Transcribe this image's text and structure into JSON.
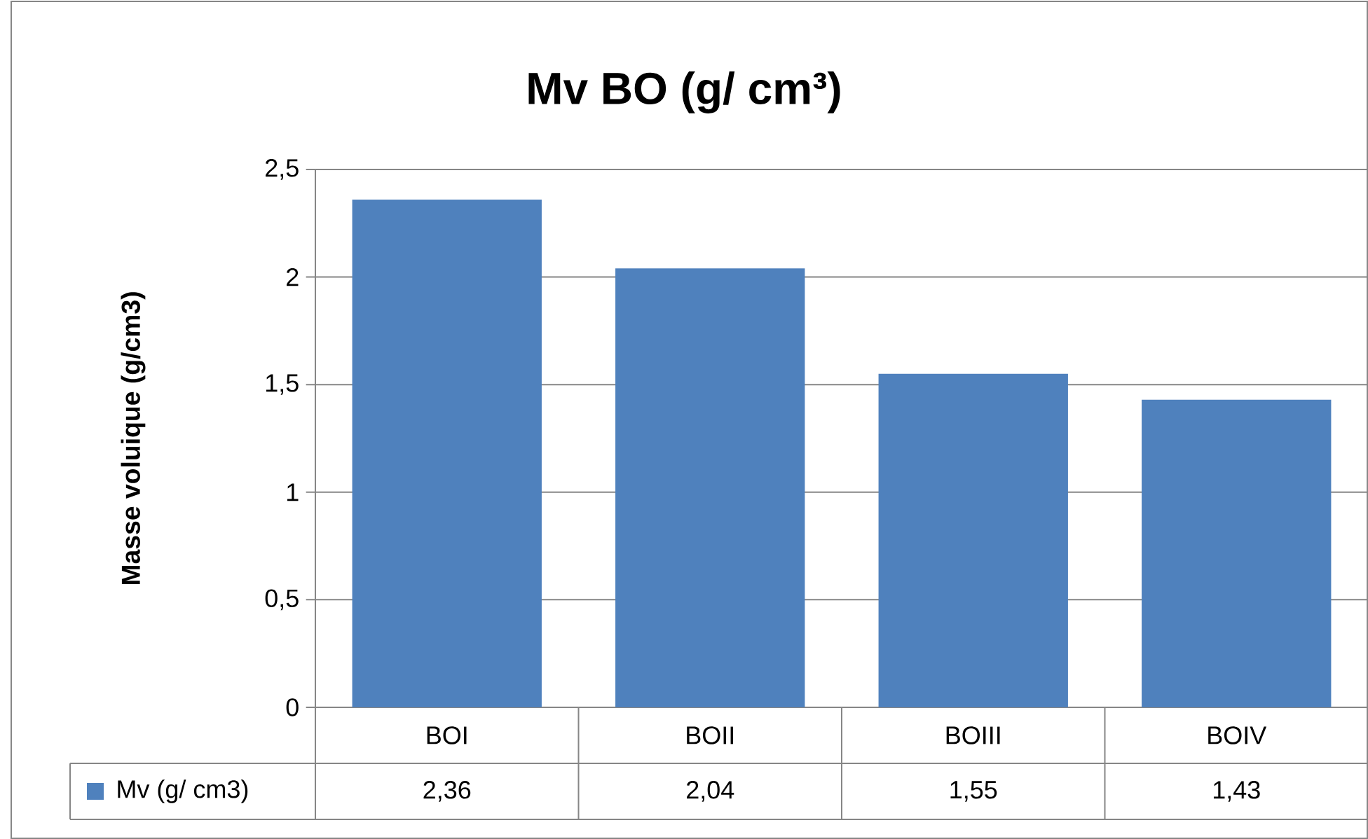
{
  "chart_data": {
    "type": "bar",
    "title": "Mv BO (g/ cm³)",
    "ylabel": "Masse voluique (g/cm3)",
    "categories": [
      "BOI",
      "BOII",
      "BOIII",
      "BOIV"
    ],
    "series": [
      {
        "name": "Mv (g/ cm3)",
        "color": "#4f81bd",
        "values": [
          2.36,
          2.04,
          1.55,
          1.43
        ],
        "value_labels": [
          "2,36",
          "2,04",
          "1,55",
          "1,43"
        ]
      }
    ],
    "ylim": [
      0,
      2.5
    ],
    "yticks": [
      {
        "value": 0,
        "label": "0"
      },
      {
        "value": 0.5,
        "label": "0,5"
      },
      {
        "value": 1,
        "label": "1"
      },
      {
        "value": 1.5,
        "label": "1,5"
      },
      {
        "value": 2,
        "label": "2"
      },
      {
        "value": 2.5,
        "label": "2,5"
      }
    ],
    "grid": "y",
    "legend": "bottom left"
  }
}
